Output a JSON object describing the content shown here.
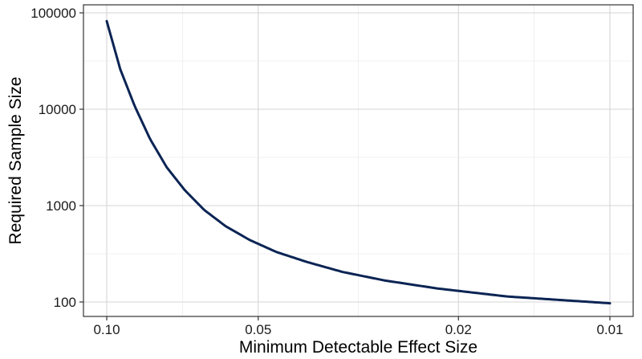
{
  "chart_data": {
    "type": "line",
    "xlabel": "Minimum Detectable Effect Size",
    "ylabel": "Required Sample Size",
    "x_scale": "reverse-log",
    "y_scale": "log",
    "xlim": [
      0.1,
      0.01
    ],
    "ylim": [
      100,
      100000
    ],
    "x_ticks": [
      {
        "value": 0.1,
        "label": "0.10"
      },
      {
        "value": 0.05,
        "label": "0.05"
      },
      {
        "value": 0.02,
        "label": "0.02"
      },
      {
        "value": 0.01,
        "label": "0.01"
      }
    ],
    "y_ticks": [
      {
        "value": 100,
        "label": "100"
      },
      {
        "value": 1000,
        "label": "1000"
      },
      {
        "value": 10000,
        "label": "10000"
      },
      {
        "value": 100000,
        "label": "100000"
      }
    ],
    "grid": true,
    "legend": "none",
    "colors": {
      "line": "#0b2454",
      "grid": "#d6d6d6",
      "panel_border": "#333333"
    },
    "series": [
      {
        "x": [
          0.1,
          0.094,
          0.088,
          0.082,
          0.076,
          0.07,
          0.064,
          0.058,
          0.052,
          0.046,
          0.04,
          0.034,
          0.028,
          0.022,
          0.016,
          0.01
        ],
        "y": [
          82000,
          26000,
          10800,
          4900,
          2500,
          1450,
          900,
          610,
          440,
          330,
          260,
          205,
          167,
          138,
          114,
          97
        ]
      }
    ]
  }
}
